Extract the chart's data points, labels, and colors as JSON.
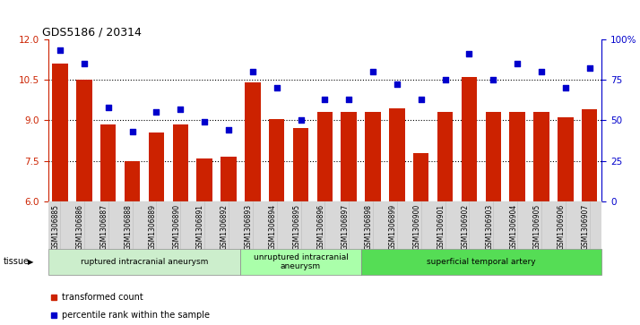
{
  "title": "GDS5186 / 20314",
  "samples": [
    "GSM1306885",
    "GSM1306886",
    "GSM1306887",
    "GSM1306888",
    "GSM1306889",
    "GSM1306890",
    "GSM1306891",
    "GSM1306892",
    "GSM1306893",
    "GSM1306894",
    "GSM1306895",
    "GSM1306896",
    "GSM1306897",
    "GSM1306898",
    "GSM1306899",
    "GSM1306900",
    "GSM1306901",
    "GSM1306902",
    "GSM1306903",
    "GSM1306904",
    "GSM1306905",
    "GSM1306906",
    "GSM1306907"
  ],
  "bar_values": [
    11.1,
    10.5,
    8.85,
    7.5,
    8.55,
    8.85,
    7.6,
    7.65,
    10.4,
    9.05,
    8.7,
    9.3,
    9.3,
    9.3,
    9.45,
    7.8,
    9.3,
    10.6,
    9.3,
    9.3,
    9.3,
    9.1,
    9.4
  ],
  "dot_values": [
    93,
    85,
    58,
    43,
    55,
    57,
    49,
    44,
    80,
    70,
    50,
    63,
    63,
    80,
    72,
    63,
    75,
    91,
    75,
    85,
    80,
    70,
    82
  ],
  "ylim_left": [
    6,
    12
  ],
  "ylim_right": [
    0,
    100
  ],
  "yticks_left": [
    6,
    7.5,
    9,
    10.5,
    12
  ],
  "yticks_right": [
    0,
    25,
    50,
    75,
    100
  ],
  "ytick_labels_right": [
    "0",
    "25",
    "50",
    "75",
    "100%"
  ],
  "bar_color": "#CC2200",
  "dot_color": "#0000CC",
  "tissue_groups": [
    {
      "label": "ruptured intracranial aneurysm",
      "start": 0,
      "end": 8
    },
    {
      "label": "unruptured intracranial\naneurysm",
      "start": 8,
      "end": 13
    },
    {
      "label": "superficial temporal artery",
      "start": 13,
      "end": 23
    }
  ],
  "group_colors": [
    "#CCEECC",
    "#AAFFAA",
    "#55DD55"
  ],
  "tissue_label": "tissue",
  "legend_bar_label": "transformed count",
  "legend_dot_label": "percentile rank within the sample",
  "bar_axis_color": "#CC2200",
  "dot_axis_color": "#0000CC",
  "xtick_bg_color": "#D8D8D8"
}
